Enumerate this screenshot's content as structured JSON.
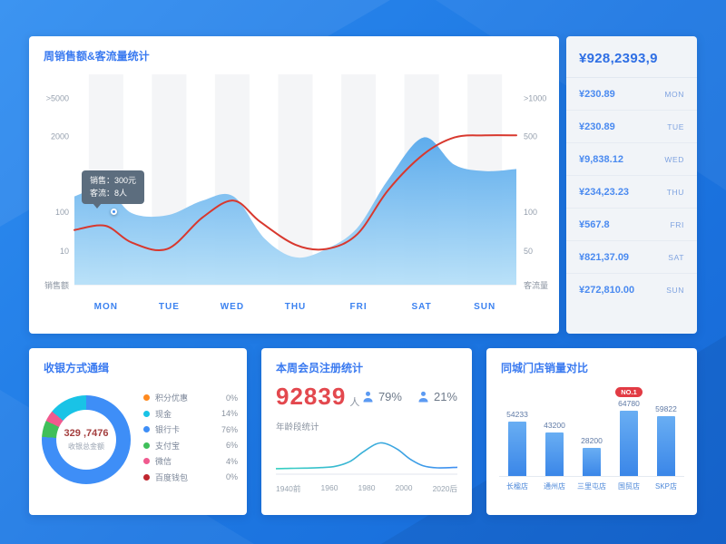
{
  "top_chart": {
    "title": "周销售额&客流量统计",
    "left_axis_label": "销售额",
    "right_axis_label": "客流量",
    "tooltip": {
      "line1": "销售：300元",
      "line2": "客流：8人"
    }
  },
  "summary": {
    "total": "¥928,2393,9",
    "rows": [
      {
        "amount": "¥230.89",
        "day": "MON"
      },
      {
        "amount": "¥230.89",
        "day": "TUE"
      },
      {
        "amount": "¥9,838.12",
        "day": "WED"
      },
      {
        "amount": "¥234,23.23",
        "day": "THU"
      },
      {
        "amount": "¥567.8",
        "day": "FRI"
      },
      {
        "amount": "¥821,37.09",
        "day": "SAT"
      },
      {
        "amount": "¥272,810.00",
        "day": "SUN"
      }
    ]
  },
  "payment_card": {
    "title": "收银方式通缉",
    "center_value": "329 ,7476",
    "center_label": "收银总金额"
  },
  "member_card": {
    "title": "本周会员注册统计",
    "count": "92839",
    "count_unit": "人",
    "pct1": "79%",
    "pct2": "21%",
    "age_title": "年龄段统计"
  },
  "store_card": {
    "title": "同城门店销量对比",
    "badge": "NO.1"
  },
  "chart_data": [
    {
      "id": "weekly_sales_traffic",
      "type": "area",
      "title": "周销售额&客流量统计",
      "categories": [
        "MON",
        "TUE",
        "WED",
        "THU",
        "FRI",
        "SAT",
        "SUN"
      ],
      "left_ticks": [
        {
          "label": ">5000",
          "f": 0.115
        },
        {
          "label": "2000",
          "f": 0.295
        },
        {
          "label": "100",
          "f": 0.655
        },
        {
          "label": "10",
          "f": 0.84
        }
      ],
      "right_ticks": [
        {
          "label": ">1000",
          "f": 0.115
        },
        {
          "label": "500",
          "f": 0.295
        },
        {
          "label": "100",
          "f": 0.655
        },
        {
          "label": "50",
          "f": 0.84
        }
      ],
      "series": [
        {
          "name": "销售额",
          "kind": "area",
          "color_top": "#58a9ec",
          "color_bottom": "#b7e0f8",
          "points": [
            [
              0,
              0.42
            ],
            [
              0.07,
              0.46
            ],
            [
              0.13,
              0.34
            ],
            [
              0.21,
              0.33
            ],
            [
              0.29,
              0.4
            ],
            [
              0.36,
              0.42
            ],
            [
              0.43,
              0.22
            ],
            [
              0.5,
              0.13
            ],
            [
              0.57,
              0.17
            ],
            [
              0.64,
              0.27
            ],
            [
              0.71,
              0.5
            ],
            [
              0.79,
              0.7
            ],
            [
              0.86,
              0.57
            ],
            [
              0.93,
              0.54
            ],
            [
              1,
              0.55
            ]
          ]
        },
        {
          "name": "客流量",
          "kind": "line",
          "color": "#d8382e",
          "points": [
            [
              0,
              0.26
            ],
            [
              0.07,
              0.28
            ],
            [
              0.13,
              0.2
            ],
            [
              0.21,
              0.17
            ],
            [
              0.29,
              0.32
            ],
            [
              0.36,
              0.4
            ],
            [
              0.42,
              0.3
            ],
            [
              0.5,
              0.19
            ],
            [
              0.57,
              0.17
            ],
            [
              0.64,
              0.24
            ],
            [
              0.71,
              0.45
            ],
            [
              0.79,
              0.62
            ],
            [
              0.86,
              0.7
            ],
            [
              0.93,
              0.71
            ],
            [
              1,
              0.71
            ]
          ]
        }
      ]
    },
    {
      "id": "payment_methods",
      "type": "pie",
      "labels": [
        "积分优惠",
        "现金",
        "银行卡",
        "支付宝",
        "微信",
        "百度钱包"
      ],
      "values": [
        0,
        14,
        76,
        6,
        4,
        0
      ],
      "colors": [
        "#ff8a1e",
        "#19c3e6",
        "#3e8ef7",
        "#3fbf5a",
        "#f05a8e",
        "#c0262e"
      ],
      "draw_order": [
        2,
        3,
        4,
        1,
        0,
        5
      ]
    },
    {
      "id": "age_distribution",
      "type": "line",
      "title": "年龄段统计",
      "x_labels": [
        "1940前",
        "1960",
        "1980",
        "2000",
        "2020后"
      ],
      "color_start": "#35d0c0",
      "color_end": "#3f8ef2",
      "points": [
        [
          0,
          0.07
        ],
        [
          0.08,
          0.08
        ],
        [
          0.16,
          0.09
        ],
        [
          0.25,
          0.11
        ],
        [
          0.33,
          0.16
        ],
        [
          0.41,
          0.34
        ],
        [
          0.48,
          0.68
        ],
        [
          0.55,
          0.97
        ],
        [
          0.6,
          1.0
        ],
        [
          0.67,
          0.78
        ],
        [
          0.74,
          0.42
        ],
        [
          0.81,
          0.18
        ],
        [
          0.89,
          0.1
        ],
        [
          1,
          0.12
        ]
      ]
    },
    {
      "id": "store_sales",
      "type": "bar",
      "title": "同城门店销量对比",
      "categories": [
        "长楹店",
        "通州店",
        "三里屯店",
        "国贸店",
        "SKP店"
      ],
      "values": [
        54233,
        43200,
        28200,
        64780,
        59822
      ],
      "bar_color_top": "#69aef3",
      "bar_color_bottom": "#3a86e8",
      "badge_index": 3
    }
  ]
}
